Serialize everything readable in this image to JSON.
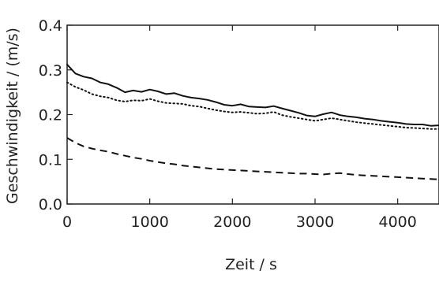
{
  "chart_data": {
    "type": "line",
    "xlabel": "Zeit / s",
    "ylabel": "Geschwindigkeit / (m/s)",
    "xlim": [
      0,
      4500
    ],
    "ylim": [
      0.0,
      0.4
    ],
    "x_ticks": [
      0,
      1000,
      2000,
      3000,
      4000
    ],
    "x_tick_labels": [
      "0",
      "1000",
      "2000",
      "3000",
      "4000"
    ],
    "y_ticks": [
      0.0,
      0.1,
      0.2,
      0.3,
      0.4
    ],
    "y_tick_labels": [
      "0.0",
      "0.1",
      "0.2",
      "0.3",
      "0.4"
    ],
    "grid": false,
    "legend": "none",
    "series": [
      {
        "style": "solid",
        "color": "#111111",
        "x": [
          0,
          100,
          200,
          300,
          400,
          500,
          600,
          700,
          800,
          900,
          1000,
          1100,
          1200,
          1300,
          1400,
          1500,
          1600,
          1700,
          1800,
          1900,
          2000,
          2100,
          2200,
          2300,
          2400,
          2500,
          2600,
          2700,
          2800,
          2900,
          3000,
          3100,
          3200,
          3300,
          3400,
          3500,
          3600,
          3700,
          3800,
          3900,
          4000,
          4100,
          4200,
          4300,
          4400,
          4500
        ],
        "values": [
          0.312,
          0.292,
          0.285,
          0.281,
          0.272,
          0.268,
          0.26,
          0.25,
          0.254,
          0.251,
          0.256,
          0.252,
          0.246,
          0.248,
          0.242,
          0.238,
          0.236,
          0.233,
          0.228,
          0.222,
          0.22,
          0.223,
          0.218,
          0.217,
          0.216,
          0.219,
          0.214,
          0.209,
          0.204,
          0.198,
          0.196,
          0.201,
          0.205,
          0.199,
          0.196,
          0.194,
          0.191,
          0.189,
          0.186,
          0.184,
          0.182,
          0.179,
          0.178,
          0.178,
          0.175,
          0.176
        ]
      },
      {
        "style": "dotted",
        "color": "#111111",
        "x": [
          0,
          100,
          200,
          300,
          400,
          500,
          600,
          700,
          800,
          900,
          1000,
          1100,
          1200,
          1300,
          1400,
          1500,
          1600,
          1700,
          1800,
          1900,
          2000,
          2100,
          2200,
          2300,
          2400,
          2500,
          2600,
          2700,
          2800,
          2900,
          3000,
          3100,
          3200,
          3300,
          3400,
          3500,
          3600,
          3700,
          3800,
          3900,
          4000,
          4100,
          4200,
          4300,
          4400,
          4500
        ],
        "values": [
          0.272,
          0.262,
          0.255,
          0.246,
          0.241,
          0.238,
          0.232,
          0.229,
          0.232,
          0.231,
          0.235,
          0.23,
          0.226,
          0.225,
          0.224,
          0.22,
          0.218,
          0.214,
          0.21,
          0.207,
          0.205,
          0.206,
          0.204,
          0.202,
          0.203,
          0.206,
          0.199,
          0.195,
          0.192,
          0.189,
          0.186,
          0.189,
          0.192,
          0.189,
          0.186,
          0.183,
          0.181,
          0.179,
          0.177,
          0.175,
          0.173,
          0.171,
          0.17,
          0.169,
          0.168,
          0.168
        ]
      },
      {
        "style": "dashed",
        "color": "#111111",
        "x": [
          0,
          100,
          200,
          300,
          400,
          500,
          600,
          700,
          800,
          900,
          1000,
          1100,
          1200,
          1300,
          1400,
          1500,
          1600,
          1700,
          1800,
          1900,
          2000,
          2100,
          2200,
          2300,
          2400,
          2500,
          2600,
          2700,
          2800,
          2900,
          3000,
          3100,
          3200,
          3300,
          3400,
          3500,
          3600,
          3700,
          3800,
          3900,
          4000,
          4100,
          4200,
          4300,
          4400,
          4500
        ],
        "values": [
          0.148,
          0.137,
          0.129,
          0.124,
          0.12,
          0.117,
          0.112,
          0.108,
          0.104,
          0.101,
          0.097,
          0.094,
          0.091,
          0.089,
          0.086,
          0.084,
          0.082,
          0.08,
          0.078,
          0.077,
          0.076,
          0.075,
          0.074,
          0.073,
          0.072,
          0.071,
          0.07,
          0.069,
          0.068,
          0.068,
          0.067,
          0.066,
          0.068,
          0.069,
          0.067,
          0.065,
          0.064,
          0.063,
          0.062,
          0.061,
          0.06,
          0.059,
          0.058,
          0.057,
          0.056,
          0.055
        ]
      }
    ]
  }
}
